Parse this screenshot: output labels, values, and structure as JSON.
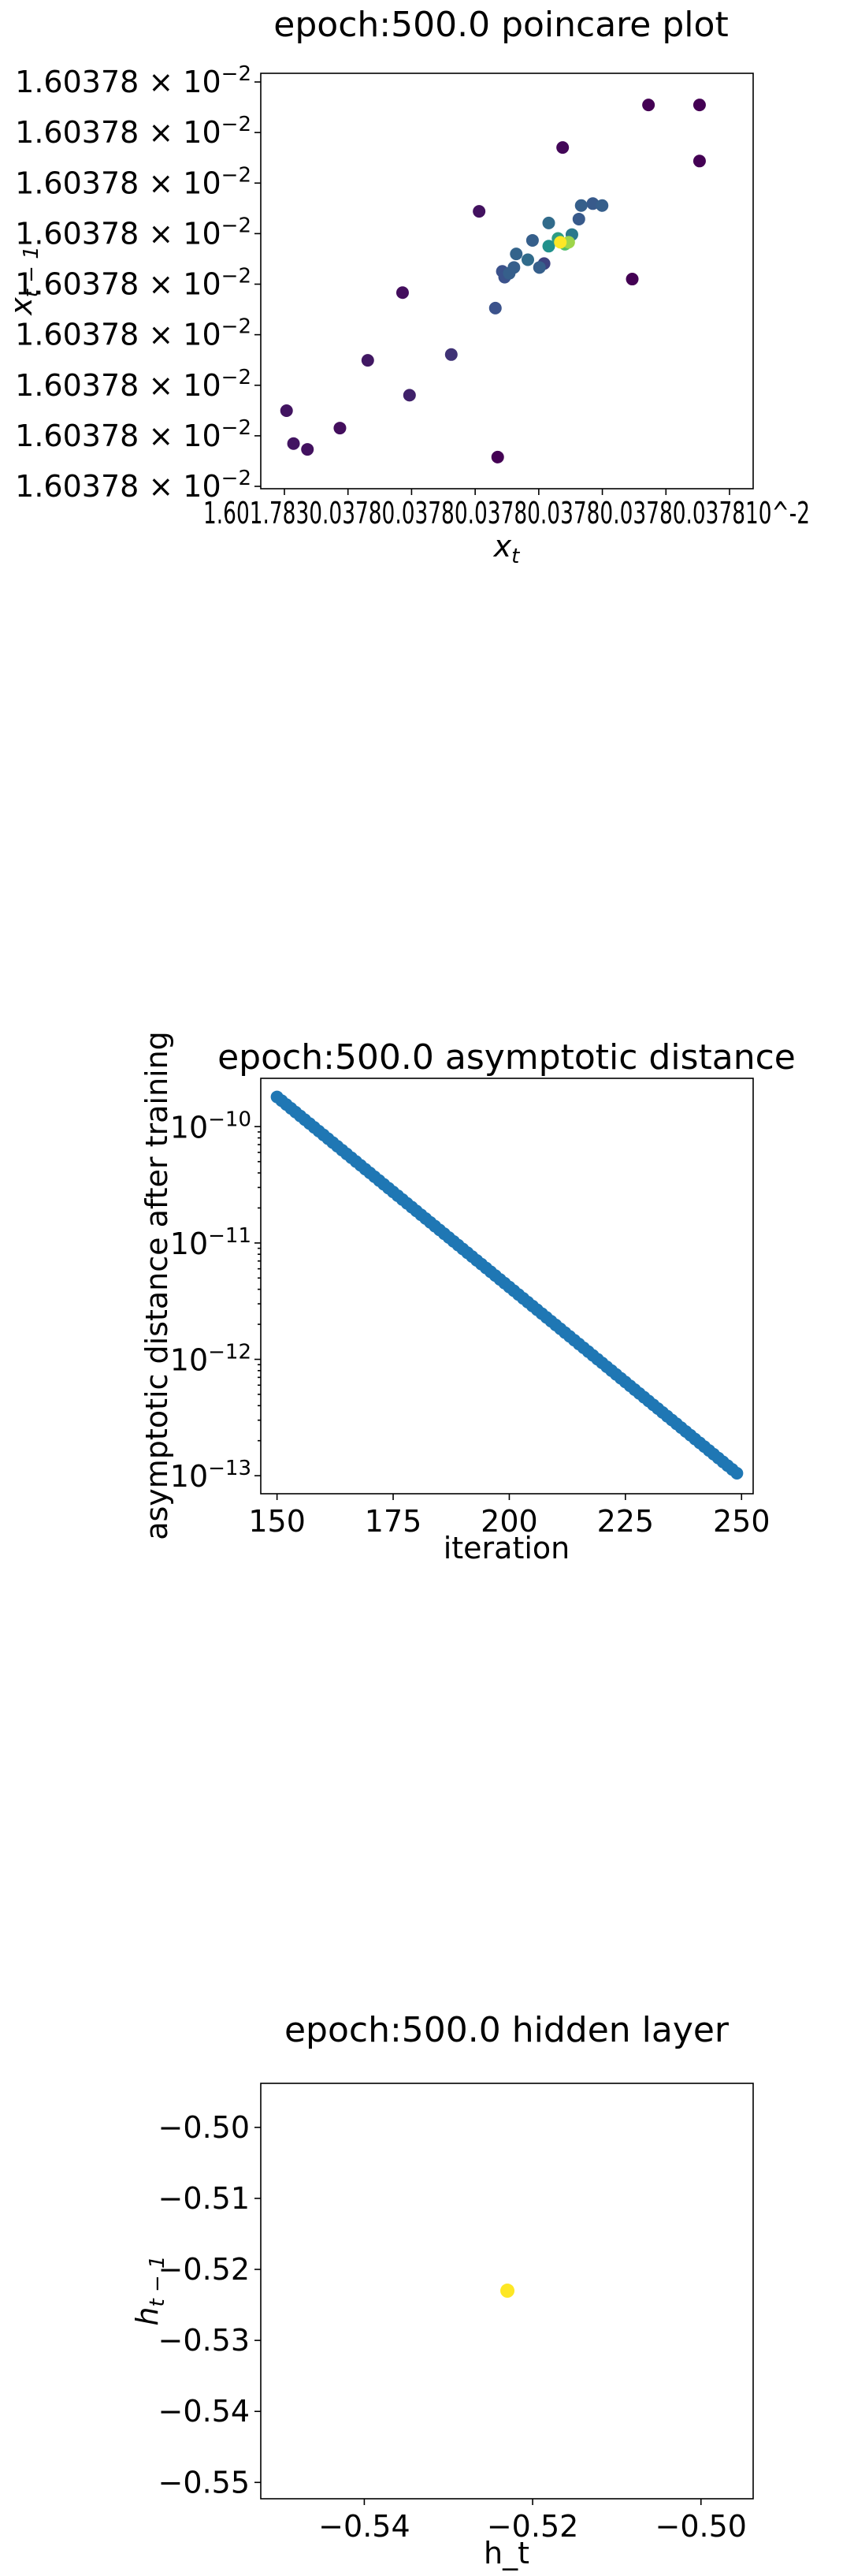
{
  "chart_data": [
    {
      "type": "scatter",
      "title": "epoch:500.0 poincare plot",
      "xlabel": "x_t",
      "ylabel": "x_{t-1}",
      "tick_label": "1.60378 × 10^-2",
      "x_tick_labels_overlapping": "1.601.7830.03780.03780.03780.03780.03780.037810^-2",
      "yticks": [
        "1.60378 × 10^-2",
        "1.60378 × 10^-2",
        "1.60378 × 10^-2",
        "1.60378 × 10^-2",
        "1.60378 × 10^-2",
        "1.60378 × 10^-2",
        "1.60378 × 10^-2",
        "1.60378 × 10^-2",
        "1.60378 × 10^-2"
      ],
      "colormap": "viridis",
      "xlim": [
        0,
        1
      ],
      "ylim": [
        0,
        1
      ],
      "points": [
        {
          "x": 0.915,
          "y": 0.955,
          "c": 0.0
        },
        {
          "x": 0.805,
          "y": 0.955,
          "c": 0.0
        },
        {
          "x": 0.915,
          "y": 0.81,
          "c": 0.0
        },
        {
          "x": 0.62,
          "y": 0.845,
          "c": 0.02
        },
        {
          "x": 0.44,
          "y": 0.68,
          "c": 0.05
        },
        {
          "x": 0.77,
          "y": 0.505,
          "c": 0.0
        },
        {
          "x": 0.275,
          "y": 0.47,
          "c": 0.04
        },
        {
          "x": 0.475,
          "y": 0.43,
          "c": 0.25
        },
        {
          "x": 0.38,
          "y": 0.31,
          "c": 0.15
        },
        {
          "x": 0.2,
          "y": 0.295,
          "c": 0.07
        },
        {
          "x": 0.29,
          "y": 0.205,
          "c": 0.1
        },
        {
          "x": 0.025,
          "y": 0.165,
          "c": 0.06
        },
        {
          "x": 0.14,
          "y": 0.12,
          "c": 0.04
        },
        {
          "x": 0.04,
          "y": 0.08,
          "c": 0.06
        },
        {
          "x": 0.07,
          "y": 0.065,
          "c": 0.05
        },
        {
          "x": 0.48,
          "y": 0.045,
          "c": 0.0
        },
        {
          "x": 0.66,
          "y": 0.695,
          "c": 0.3
        },
        {
          "x": 0.655,
          "y": 0.66,
          "c": 0.28
        },
        {
          "x": 0.59,
          "y": 0.65,
          "c": 0.35
        },
        {
          "x": 0.64,
          "y": 0.62,
          "c": 0.4
        },
        {
          "x": 0.555,
          "y": 0.605,
          "c": 0.3
        },
        {
          "x": 0.52,
          "y": 0.57,
          "c": 0.32
        },
        {
          "x": 0.61,
          "y": 0.61,
          "c": 0.55
        },
        {
          "x": 0.59,
          "y": 0.59,
          "c": 0.5
        },
        {
          "x": 0.545,
          "y": 0.555,
          "c": 0.35
        },
        {
          "x": 0.515,
          "y": 0.535,
          "c": 0.3
        },
        {
          "x": 0.49,
          "y": 0.525,
          "c": 0.25
        },
        {
          "x": 0.505,
          "y": 0.52,
          "c": 0.3
        },
        {
          "x": 0.495,
          "y": 0.51,
          "c": 0.25
        },
        {
          "x": 0.57,
          "y": 0.535,
          "c": 0.3
        },
        {
          "x": 0.625,
          "y": 0.595,
          "c": 0.7
        },
        {
          "x": 0.633,
          "y": 0.6,
          "c": 0.85
        },
        {
          "x": 0.615,
          "y": 0.6,
          "c": 1.0
        },
        {
          "x": 0.58,
          "y": 0.545,
          "c": 0.2
        },
        {
          "x": 0.705,
          "y": 0.695,
          "c": 0.3
        },
        {
          "x": 0.685,
          "y": 0.7,
          "c": 0.28
        }
      ]
    },
    {
      "type": "scatter",
      "title": "epoch:500.0 asymptotic distance",
      "xlabel": "iteration",
      "ylabel": "asymptotic distance after training",
      "yscale": "log",
      "xlim": [
        146.5,
        252.5
      ],
      "ylim": [
        7e-14,
        2.6e-10
      ],
      "xticks": [
        150,
        175,
        200,
        225,
        250
      ],
      "yticks": [
        1e-13,
        1e-12,
        1e-11,
        1e-10
      ],
      "ytick_labels": [
        "10^-13",
        "10^-12",
        "10^-11",
        "10^-10"
      ],
      "x_start": 150,
      "x_end": 249,
      "y_start": 1.8e-10,
      "y_end": 1.05e-13,
      "color": "#1f77b4"
    },
    {
      "type": "scatter",
      "title": "epoch:500.0 hidden layer",
      "xlabel": "h_t",
      "ylabel": "h_{t-1}",
      "xlim": [
        -0.5523,
        -0.4938
      ],
      "ylim": [
        -0.5523,
        -0.4938
      ],
      "xticks": [
        -0.54,
        -0.52,
        -0.5
      ],
      "xtick_labels": [
        "−0.54",
        "−0.52",
        "−0.50"
      ],
      "yticks": [
        -0.5,
        -0.51,
        -0.52,
        -0.53,
        -0.54,
        -0.55
      ],
      "ytick_labels": [
        "−0.50",
        "−0.51",
        "−0.52",
        "−0.53",
        "−0.54",
        "−0.55"
      ],
      "points": [
        {
          "x": -0.523,
          "y": -0.523
        }
      ],
      "color": "#fde725"
    }
  ]
}
